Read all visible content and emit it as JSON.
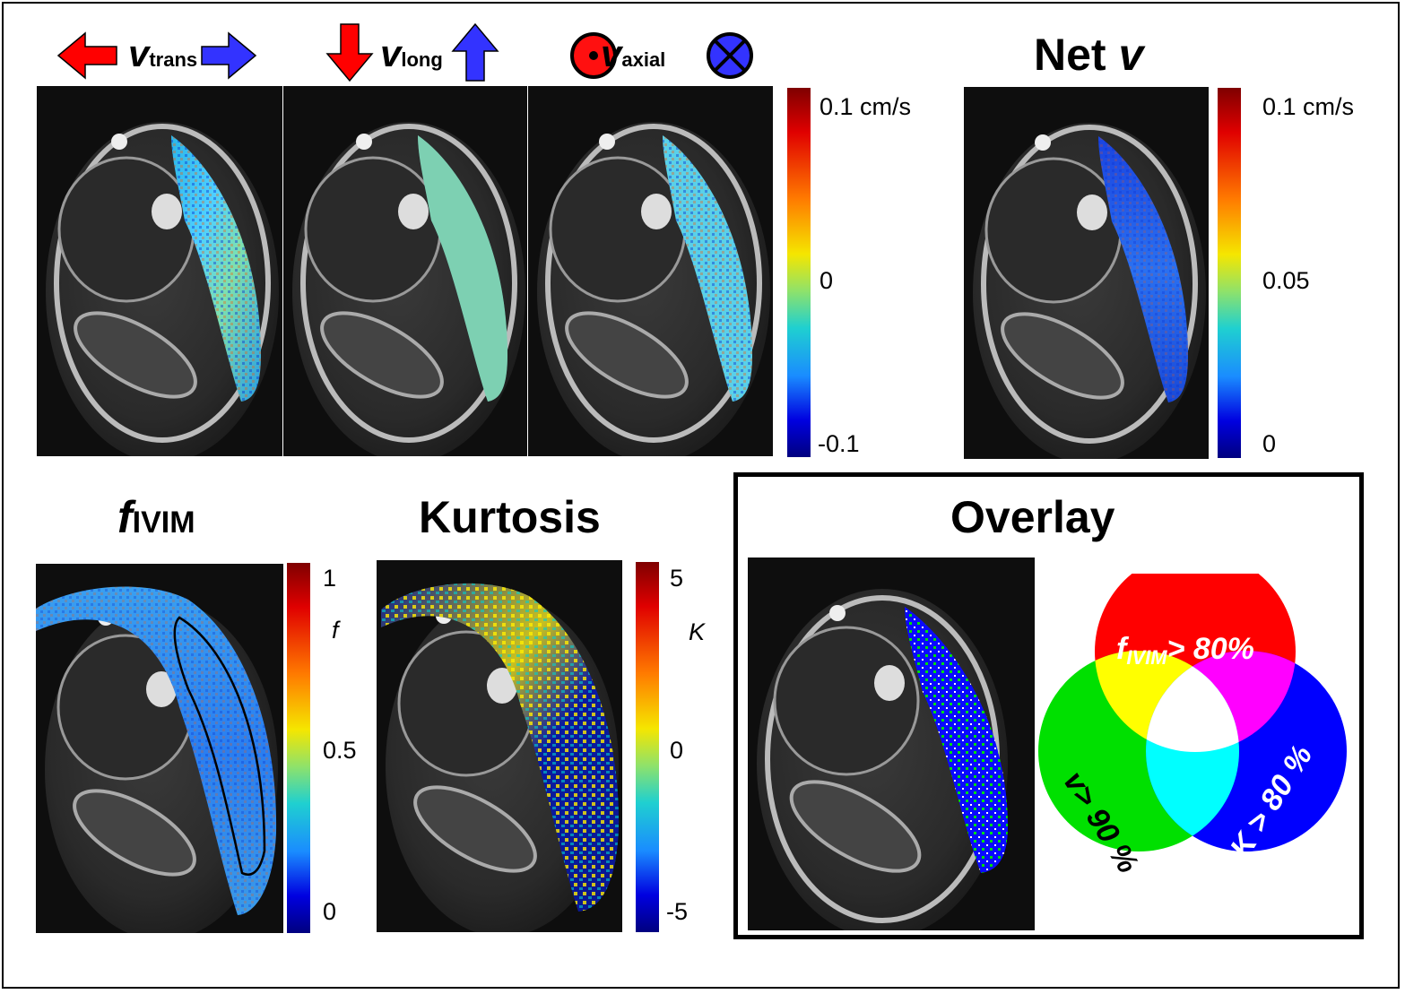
{
  "legend": {
    "v_symbol": "v",
    "trans_sub": "trans",
    "long_sub": "long",
    "axial_sub": "axial",
    "net_title": "Net ",
    "net_v": "v"
  },
  "colorbars": {
    "velocity": {
      "top": "0.1 cm/s",
      "mid": "0",
      "bottom": "-0.1"
    },
    "net": {
      "top": "0.1 cm/s",
      "mid": "0.05",
      "bottom": "0"
    },
    "fivim": {
      "top": "1",
      "var": "f",
      "mid": "0.5",
      "bottom": "0"
    },
    "kurtosis": {
      "top": "5",
      "var": "K",
      "mid": "0",
      "bottom": "-5"
    }
  },
  "titles": {
    "fivim_main": "f",
    "fivim_sub": "IVIM",
    "kurtosis": "Kurtosis",
    "overlay": "Overlay"
  },
  "venn": {
    "red_label_main": "f",
    "red_label_sub": "IVIM",
    "red_label_rest": "> 80%",
    "green_label": "v> 90 %",
    "blue_label": "K > 80 %"
  },
  "colors": {
    "red": "#ff0000",
    "green": "#00e000",
    "blue": "#0000ff",
    "yellow": "#ffff00",
    "magenta": "#ff00ff",
    "cyan": "#00ffff",
    "arrow_red": "#ff0000",
    "arrow_blue": "#3333ff"
  }
}
